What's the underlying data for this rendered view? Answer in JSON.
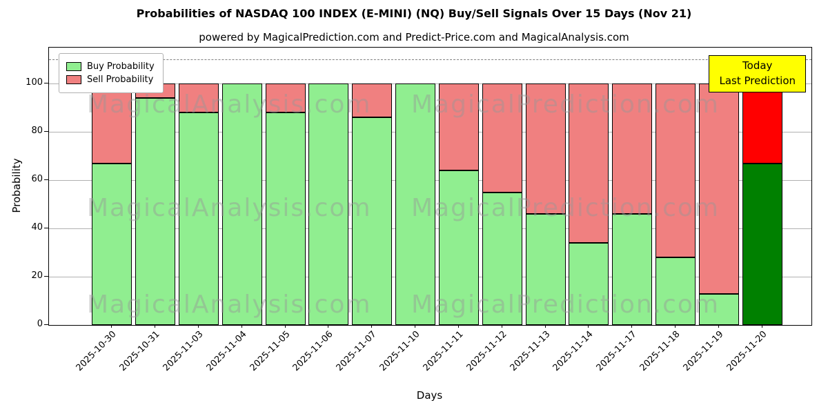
{
  "title": "Probabilities of NASDAQ 100 INDEX (E-MINI) (NQ) Buy/Sell Signals Over 15 Days (Nov 21)",
  "subtitle": "powered by MagicalPrediction.com and Predict-Price.com and MagicalAnalysis.com",
  "legend": {
    "items": [
      {
        "label": "Buy Probability",
        "color": "#90EE90"
      },
      {
        "label": "Sell Probability",
        "color": "#F08080"
      }
    ]
  },
  "annotation_box": {
    "line1": "Today",
    "line2": "Last Prediction",
    "bg": "#FFFF00"
  },
  "axes": {
    "xlabel": "Days",
    "ylabel": "Probability"
  },
  "watermarks": {
    "left": "MagicalAnalysis.com",
    "right": "MagicalPrediction.com"
  },
  "colors": {
    "buy": "#90EE90",
    "sell": "#F08080",
    "today_buy": "#008000",
    "today_sell": "#FF0000",
    "grid": "#b0b0b0",
    "dashed": "#7f7f7f"
  },
  "chart_data": {
    "type": "bar",
    "stacked": true,
    "title": "Probabilities of NASDAQ 100 INDEX (E-MINI) (NQ) Buy/Sell Signals Over 15 Days (Nov 21)",
    "xlabel": "Days",
    "ylabel": "Probability",
    "categories": [
      "2025-10-30",
      "2025-10-31",
      "2025-11-03",
      "2025-11-04",
      "2025-11-05",
      "2025-11-06",
      "2025-11-07",
      "2025-11-10",
      "2025-11-11",
      "2025-11-12",
      "2025-11-13",
      "2025-11-14",
      "2025-11-17",
      "2025-11-18",
      "2025-11-19",
      "2025-11-20"
    ],
    "series": [
      {
        "name": "Buy Probability",
        "values": [
          67,
          94,
          88,
          100,
          88,
          100,
          86,
          100,
          64,
          55,
          46,
          34,
          46,
          28,
          13,
          67
        ]
      },
      {
        "name": "Sell Probability",
        "values": [
          33,
          6,
          12,
          0,
          12,
          0,
          14,
          0,
          36,
          45,
          54,
          66,
          54,
          72,
          87,
          33
        ]
      }
    ],
    "ylim": [
      0,
      115
    ],
    "yticks": [
      0,
      20,
      40,
      60,
      80,
      100
    ],
    "dashed_line_y": 110,
    "grid": true,
    "legend_position": "upper left",
    "today_index": 15
  }
}
